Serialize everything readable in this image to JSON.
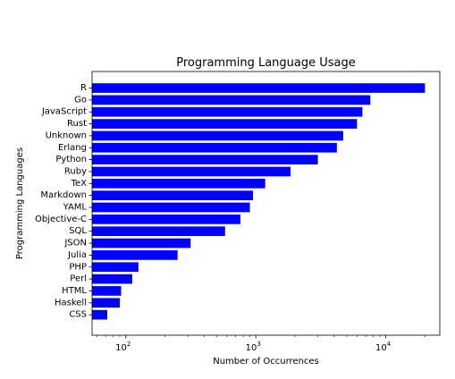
{
  "chart_data": {
    "type": "bar",
    "orientation": "horizontal",
    "title": "Programming Language Usage",
    "xlabel": "Number of Occurrences",
    "ylabel": "Programming Languages",
    "x_scale": "log",
    "xlim": [
      55,
      26000
    ],
    "x_ticks": [
      {
        "value": 100,
        "base": "10",
        "exp": "2"
      },
      {
        "value": 1000,
        "base": "10",
        "exp": "3"
      },
      {
        "value": 10000,
        "base": "10",
        "exp": "4"
      }
    ],
    "grid": false,
    "bar_color": "#0000ff",
    "categories": [
      "R",
      "Go",
      "JavaScript",
      "Rust",
      "Unknown",
      "Erlang",
      "Python",
      "Ruby",
      "TeX",
      "Markdown",
      "YAML",
      "Objective-C",
      "SQL",
      "JSON",
      "Julia",
      "PHP",
      "Perl",
      "HTML",
      "Haskell",
      "CSS"
    ],
    "values": [
      20000,
      7600,
      6600,
      6000,
      4700,
      4200,
      3000,
      1850,
      1180,
      950,
      900,
      760,
      580,
      315,
      250,
      125,
      112,
      92,
      90,
      72
    ]
  }
}
